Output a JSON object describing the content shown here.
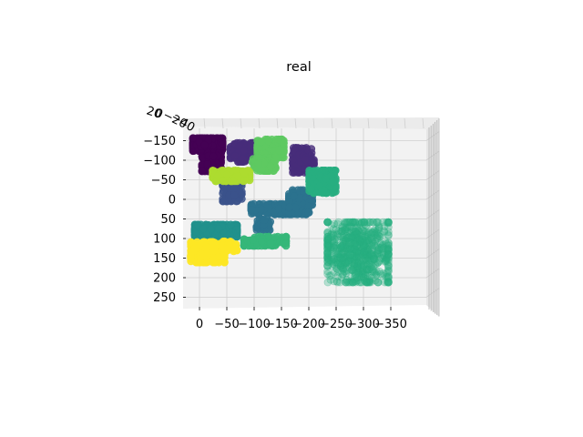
{
  "chart_data": {
    "type": "scatter",
    "title": "real",
    "xlabel": "",
    "ylabel": "",
    "x_ticks": [
      "0",
      "−50",
      "−100",
      "−150",
      "−200",
      "−250",
      "−300",
      "−350"
    ],
    "y_ticks": [
      "−150",
      "−100",
      "−50",
      "0",
      "50",
      "100",
      "150",
      "200",
      "250"
    ],
    "z_ticks": [
      "20",
      "0",
      "−20",
      "−40"
    ],
    "xlim": [
      15,
      -380
    ],
    "ylim": [
      -175,
      265
    ],
    "grid": true,
    "colors": [
      "#440154",
      "#472d7b",
      "#3b528b",
      "#2c728e",
      "#21918c",
      "#28ae80",
      "#5ec962",
      "#addc30",
      "#fde725",
      "#7ad151",
      "#35b779"
    ],
    "clusters": [
      {
        "color": "#440154",
        "alpha": 0.95,
        "n": 360,
        "cx": -15,
        "cy": -140,
        "rx": 28,
        "ry": 17
      },
      {
        "color": "#440154",
        "alpha": 0.95,
        "n": 220,
        "cx": -22,
        "cy": -95,
        "rx": 18,
        "ry": 24
      },
      {
        "color": "#472d7b",
        "alpha": 0.8,
        "n": 160,
        "cx": -78,
        "cy": -120,
        "rx": 22,
        "ry": 25
      },
      {
        "color": "#472d7b",
        "alpha": 0.8,
        "n": 140,
        "cx": -190,
        "cy": -100,
        "rx": 20,
        "ry": 33
      },
      {
        "color": "#3b528b",
        "alpha": 0.85,
        "n": 120,
        "cx": -60,
        "cy": -20,
        "rx": 18,
        "ry": 26
      },
      {
        "color": "#2c728e",
        "alpha": 0.85,
        "n": 220,
        "cx": -145,
        "cy": 25,
        "rx": 52,
        "ry": 14
      },
      {
        "color": "#2c728e",
        "alpha": 0.85,
        "n": 150,
        "cx": -185,
        "cy": 5,
        "rx": 22,
        "ry": 30
      },
      {
        "color": "#2c728e",
        "alpha": 0.85,
        "n": 40,
        "cx": -117,
        "cy": 65,
        "rx": 13,
        "ry": 14
      },
      {
        "color": "#21918c",
        "alpha": 0.9,
        "n": 320,
        "cx": -30,
        "cy": 80,
        "rx": 40,
        "ry": 16
      },
      {
        "color": "#28ae80",
        "alpha": 0.3,
        "n": 700,
        "cx": -290,
        "cy": 135,
        "rx": 58,
        "ry": 80
      },
      {
        "color": "#28ae80",
        "alpha": 0.9,
        "n": 200,
        "cx": -225,
        "cy": -45,
        "rx": 25,
        "ry": 30
      },
      {
        "color": "#5ec962",
        "alpha": 0.85,
        "n": 180,
        "cx": -130,
        "cy": -130,
        "rx": 25,
        "ry": 24
      },
      {
        "color": "#5ec962",
        "alpha": 0.85,
        "n": 110,
        "cx": -118,
        "cy": -90,
        "rx": 22,
        "ry": 18
      },
      {
        "color": "#addc30",
        "alpha": 0.9,
        "n": 140,
        "cx": -58,
        "cy": -60,
        "rx": 35,
        "ry": 14
      },
      {
        "color": "#35b779",
        "alpha": 0.9,
        "n": 120,
        "cx": -120,
        "cy": 107,
        "rx": 40,
        "ry": 12
      },
      {
        "color": "#fde725",
        "alpha": 0.95,
        "n": 260,
        "cx": -15,
        "cy": 135,
        "rx": 32,
        "ry": 27
      },
      {
        "color": "#fde725",
        "alpha": 0.95,
        "n": 60,
        "cx": -55,
        "cy": 120,
        "rx": 14,
        "ry": 13
      }
    ]
  }
}
